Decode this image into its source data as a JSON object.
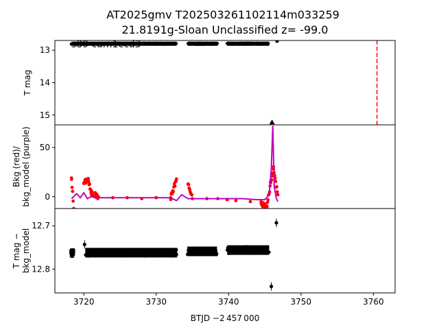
{
  "figure": {
    "title_line1": "AT2025gmv  T202503261102114m033259",
    "title_line2": "21.8191g-Sloan Unclassified z= -99.0",
    "xlabel": "BTJD −2 457 000",
    "panel_label": "s89 cam1ccd3"
  },
  "chart_data": [
    {
      "type": "scatter",
      "panel": "top",
      "ylabel": "T mag",
      "ylim": [
        15.3,
        12.7
      ],
      "y_inverted": true,
      "xlim": [
        3716,
        3763
      ],
      "yticks": [
        13,
        14,
        15
      ],
      "segments": [
        {
          "x0": 3718.3,
          "x1": 3732.8,
          "y": 12.8
        },
        {
          "x0": 3734.4,
          "x1": 3738.5,
          "y": 12.8
        },
        {
          "x0": 3739.8,
          "x1": 3745.6,
          "y": 12.8
        }
      ],
      "points": [
        {
          "x": 3718.3,
          "y": 12.81
        },
        {
          "x": 3746.7,
          "y": 12.72
        }
      ],
      "triangle_marker": {
        "x": 3746.0,
        "y": 15.22
      },
      "vline": {
        "x": 3760.5,
        "color": "#ff0000",
        "style": "dashed"
      }
    },
    {
      "type": "line",
      "panel": "middle",
      "ylabel_line1": "Bkg (red)/",
      "ylabel_line2": "bkg_model (purple)",
      "ylim": [
        -12,
        73
      ],
      "yticks": [
        0,
        50
      ],
      "series": [
        {
          "color": "#ff0000",
          "kind": "points",
          "x": [
            3718.3,
            3718.6,
            3720.0,
            3720.6,
            3721.0,
            3722,
            3724,
            3726,
            3728,
            3730,
            3732.0,
            3732.8,
            3734.4,
            3735,
            3737,
            3738.5,
            3739.8,
            3741,
            3743,
            3744.5,
            3745.3,
            3745.8,
            3746.2,
            3746.8
          ],
          "y": [
            19,
            -12,
            14,
            18,
            4,
            0,
            -1,
            -1,
            -2,
            -1,
            -1,
            18,
            13,
            -2,
            -2,
            -2,
            -3,
            -4,
            -5,
            -7,
            -10,
            14,
            28,
            2
          ]
        },
        {
          "color": "#bf00bf",
          "kind": "line",
          "x": [
            3718.3,
            3719,
            3719.5,
            3720,
            3720.5,
            3721,
            3722,
            3724,
            3726,
            3728,
            3730,
            3732,
            3732.8,
            3733.5,
            3734.4,
            3736,
            3738.5,
            3739.8,
            3742,
            3744,
            3745,
            3745.6,
            3745.9,
            3746.1,
            3746.3,
            3746.6,
            3746.8
          ],
          "y": [
            -2,
            3,
            -1,
            4,
            -2,
            0,
            -1,
            -1,
            -1,
            -1,
            -1,
            -1,
            -4,
            2,
            -2,
            -2,
            -2,
            -2,
            -2,
            -3,
            -3,
            2,
            28,
            72,
            10,
            -2,
            -5
          ]
        }
      ]
    },
    {
      "type": "scatter",
      "panel": "bottom",
      "ylabel_line1": "T mag −",
      "ylabel_line2": "bkg_model",
      "ylim": [
        12.855,
        12.66
      ],
      "y_inverted": true,
      "yticks": [
        12.7,
        12.8
      ],
      "xticks": [
        3720,
        3730,
        3740,
        3750,
        3760
      ],
      "segments": [
        {
          "x0": 3718.2,
          "x1": 3718.6,
          "y": 12.763
        },
        {
          "x0": 3720.2,
          "x1": 3732.9,
          "y": 12.762
        },
        {
          "x0": 3734.3,
          "x1": 3738.4,
          "y": 12.759
        },
        {
          "x0": 3739.8,
          "x1": 3745.6,
          "y": 12.756
        }
      ],
      "points": [
        {
          "x": 3720.1,
          "y": 12.743
        },
        {
          "x": 3745.9,
          "y": 12.84
        },
        {
          "x": 3746.6,
          "y": 12.693
        }
      ]
    }
  ]
}
